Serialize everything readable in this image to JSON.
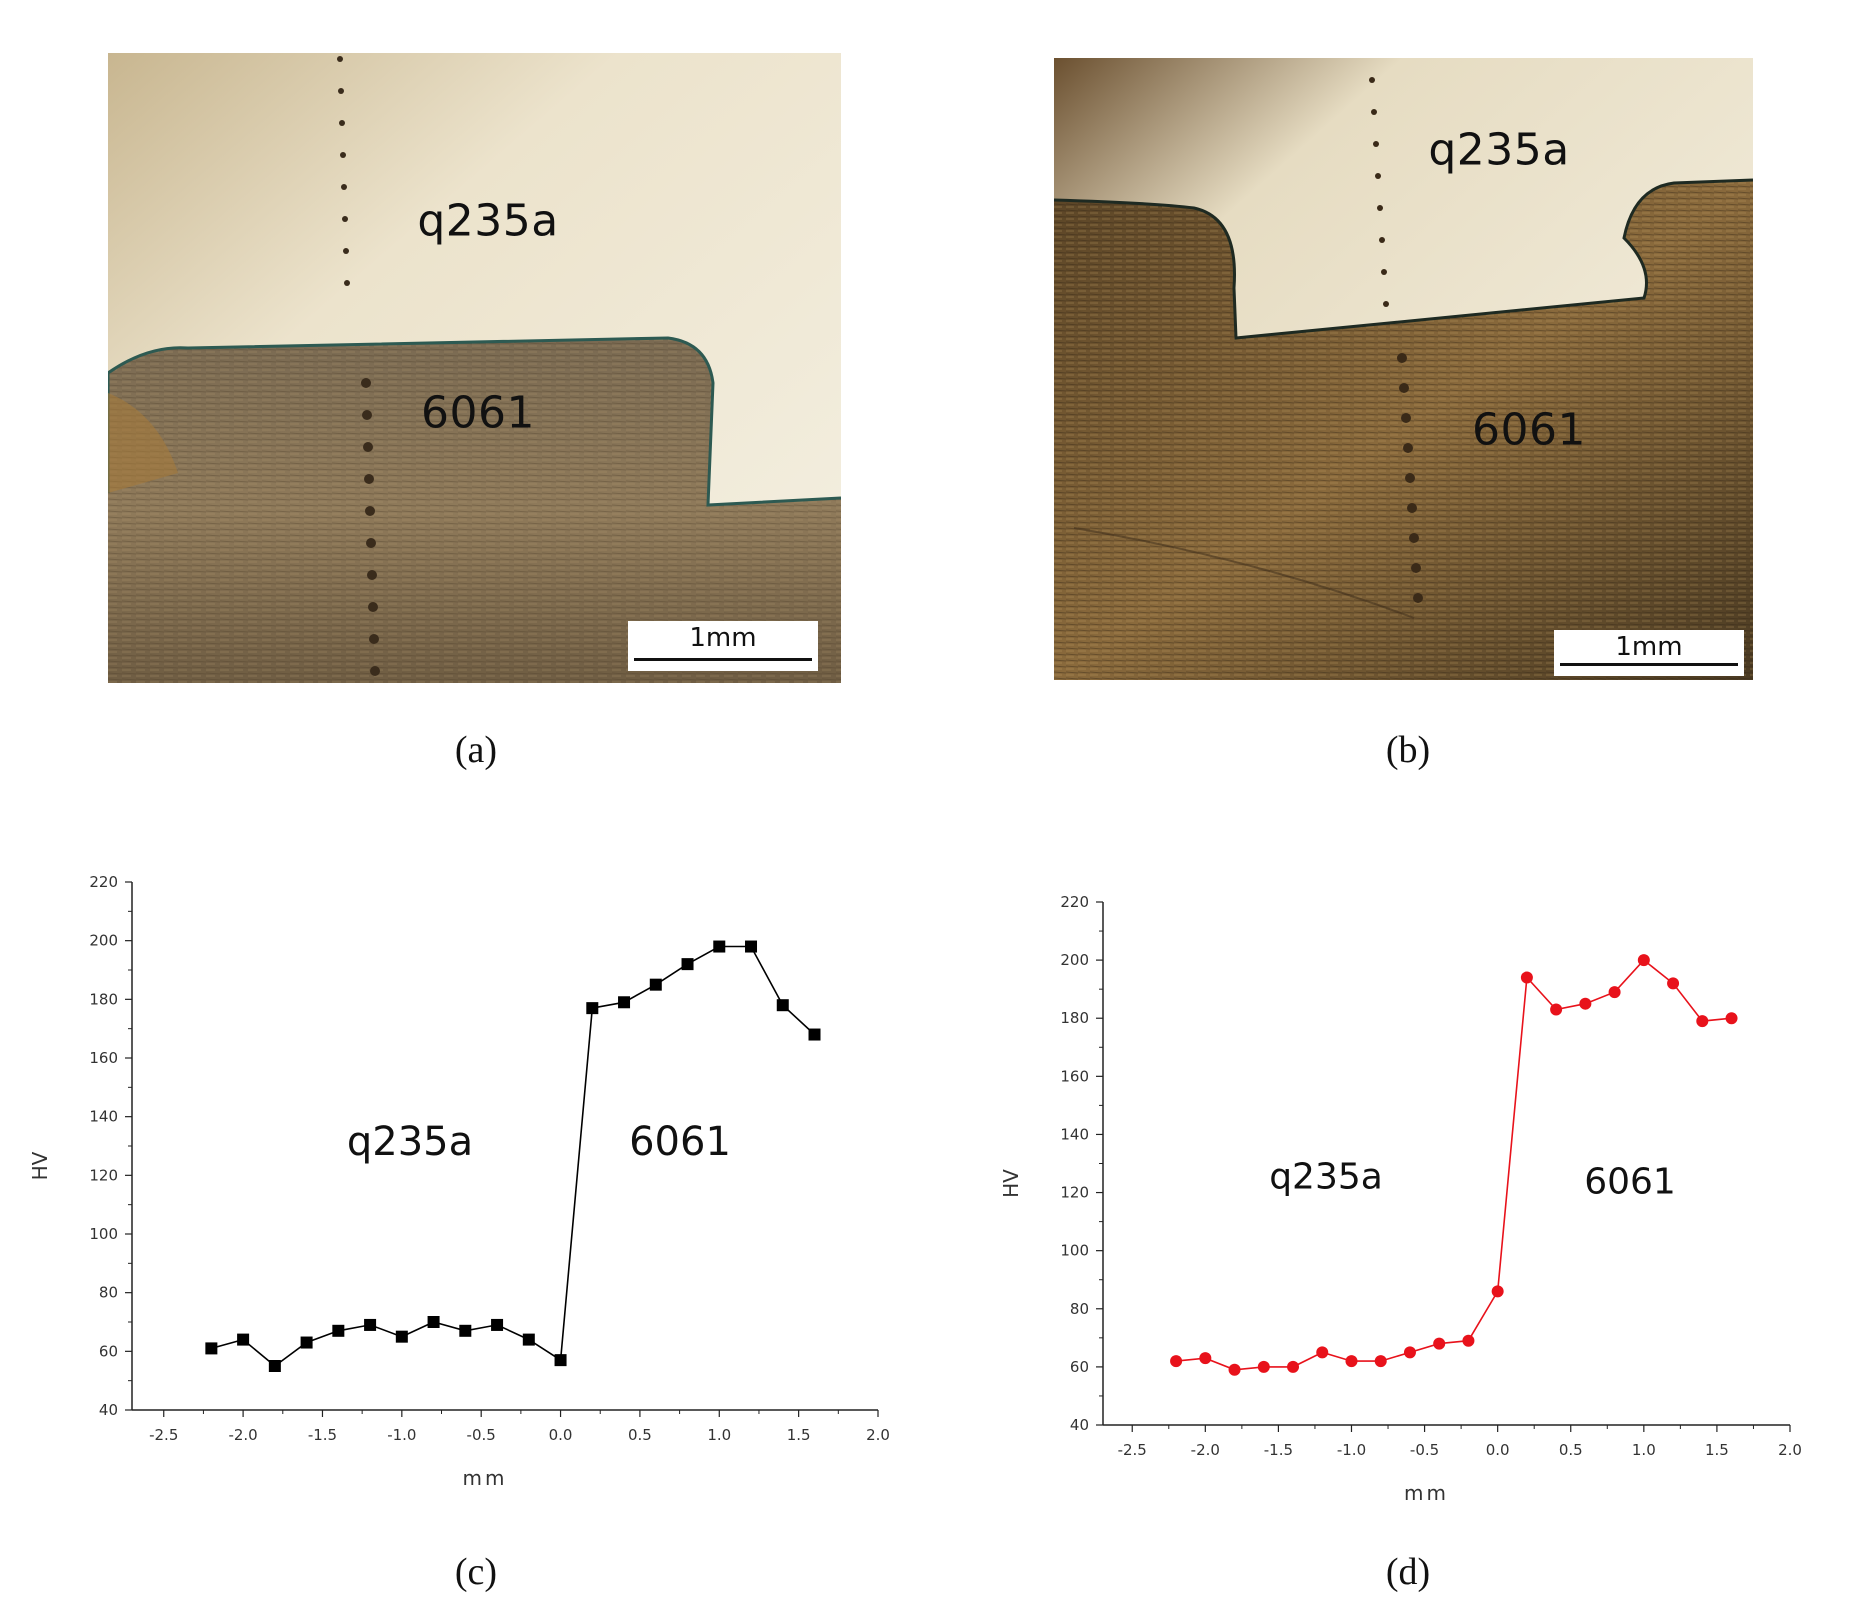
{
  "panels": {
    "a": {
      "caption": "(a)",
      "top_material": "q235a",
      "bottom_material": "6061",
      "scale_label": "1mm"
    },
    "b": {
      "caption": "(b)",
      "top_material": "q235a",
      "bottom_material": "6061",
      "scale_label": "1mm"
    },
    "c": {
      "caption": "(c)",
      "left_annotation": "q235a",
      "right_annotation": "6061"
    },
    "d": {
      "caption": "(d)",
      "left_annotation": "q235a",
      "right_annotation": "6061"
    }
  },
  "chart_data": [
    {
      "id": "c",
      "type": "line",
      "xlabel": "mm",
      "ylabel": "HV",
      "xlim": [
        -2.7,
        2.0
      ],
      "ylim": [
        40,
        220
      ],
      "xticks": [
        "-2.5",
        "-2.0",
        "-1.5",
        "-1.0",
        "-0.5",
        "0.0",
        "0.5",
        "1.0",
        "1.5",
        "2.0"
      ],
      "yticks": [
        "40",
        "60",
        "80",
        "100",
        "120",
        "140",
        "160",
        "180",
        "200",
        "220"
      ],
      "marker": "square",
      "color": "#000000",
      "x": [
        -2.2,
        -2.0,
        -1.8,
        -1.6,
        -1.4,
        -1.2,
        -1.0,
        -0.8,
        -0.6,
        -0.4,
        -0.2,
        0.0,
        0.2,
        0.4,
        0.6,
        0.8,
        1.0,
        1.2,
        1.4,
        1.6
      ],
      "y": [
        61,
        64,
        55,
        63,
        67,
        69,
        65,
        70,
        67,
        69,
        64,
        57,
        177,
        179,
        185,
        192,
        198,
        198,
        178,
        168
      ]
    },
    {
      "id": "d",
      "type": "line",
      "xlabel": "mm",
      "ylabel": "HV",
      "xlim": [
        -2.7,
        2.0
      ],
      "ylim": [
        40,
        220
      ],
      "xticks": [
        "-2.5",
        "-2.0",
        "-1.5",
        "-1.0",
        "-0.5",
        "0.0",
        "0.5",
        "1.0",
        "1.5",
        "2.0"
      ],
      "yticks": [
        "40",
        "60",
        "80",
        "100",
        "120",
        "140",
        "160",
        "180",
        "200",
        "220"
      ],
      "marker": "circle",
      "color": "#e8121b",
      "x": [
        -2.2,
        -2.0,
        -1.8,
        -1.6,
        -1.4,
        -1.2,
        -1.0,
        -0.8,
        -0.6,
        -0.4,
        -0.2,
        0.0,
        0.2,
        0.4,
        0.6,
        0.8,
        1.0,
        1.2,
        1.4,
        1.6
      ],
      "y": [
        62,
        63,
        59,
        60,
        60,
        65,
        62,
        62,
        65,
        68,
        69,
        86,
        194,
        183,
        185,
        189,
        200,
        192,
        179,
        180
      ]
    }
  ]
}
